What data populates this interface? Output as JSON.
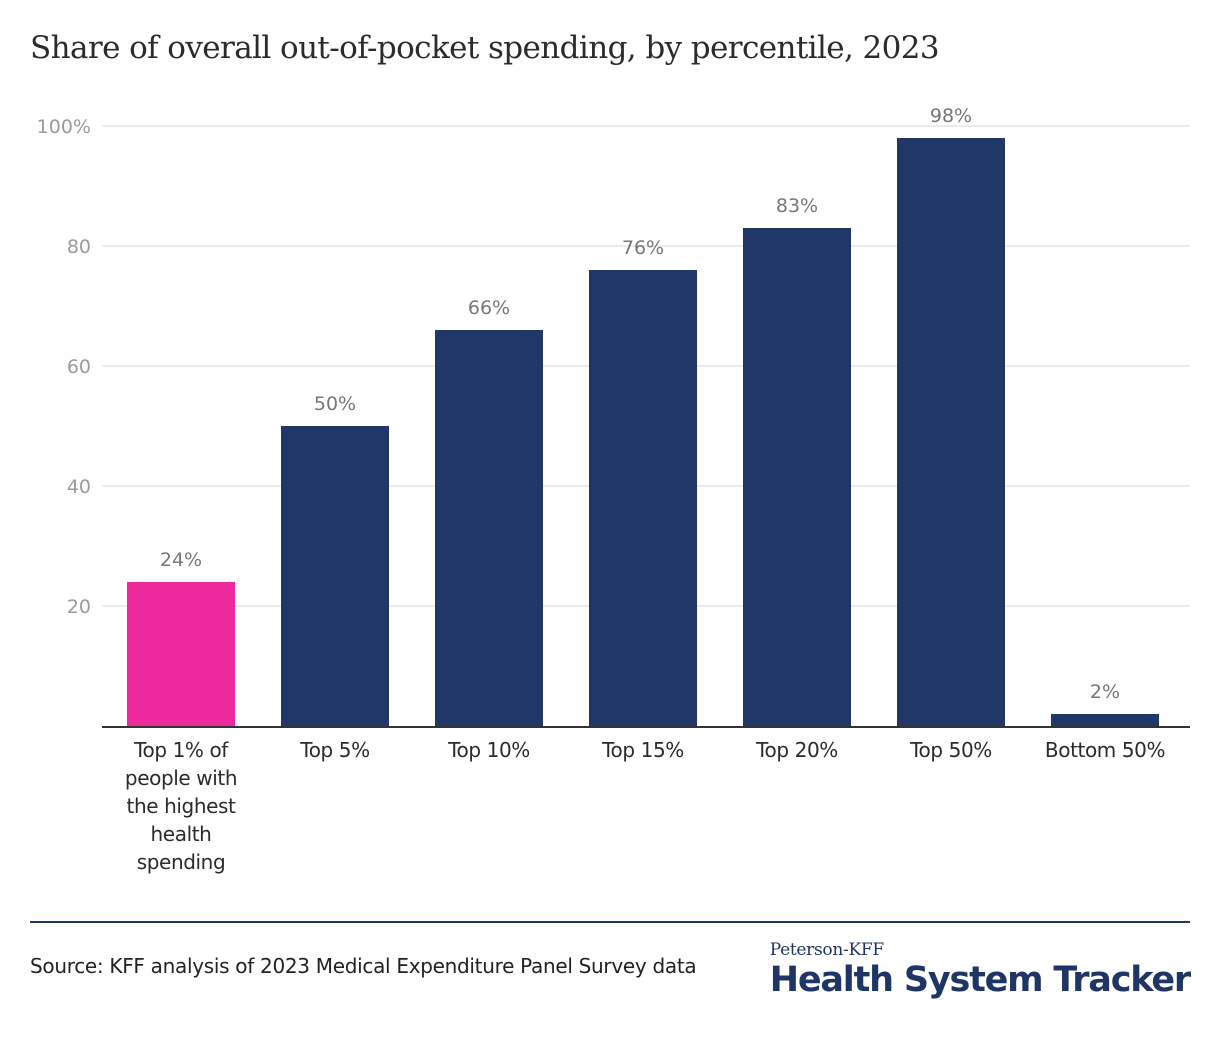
{
  "chart_data": {
    "type": "bar",
    "title": "Share of overall out-of-pocket spending, by percentile, 2023",
    "xlabel": "",
    "ylabel": "",
    "ylim": [
      0,
      100
    ],
    "yticks": [
      20,
      40,
      60,
      80,
      100
    ],
    "ytick_labels": [
      "20",
      "40",
      "60",
      "80",
      "100%"
    ],
    "grid": true,
    "categories": [
      [
        "Top 1% of",
        "people with",
        "the highest",
        "health",
        "spending"
      ],
      [
        "Top 5%"
      ],
      [
        "Top 10%"
      ],
      [
        "Top 15%"
      ],
      [
        "Top 20%"
      ],
      [
        "Top 50%"
      ],
      [
        "Bottom 50%"
      ]
    ],
    "values": [
      24,
      50,
      66,
      76,
      83,
      98,
      2
    ],
    "data_labels": [
      "24%",
      "50%",
      "66%",
      "76%",
      "83%",
      "98%",
      "2%"
    ],
    "bar_colors": [
      "#ec2a9e",
      "#213767",
      "#213767",
      "#213767",
      "#213767",
      "#213767",
      "#213767"
    ],
    "highlight_category": "Top 1% of people with the highest health spending"
  },
  "colors": {
    "highlight": "#ec2a9e",
    "primary": "#213767",
    "gridline": "#e3e3e3",
    "axis": "#333333",
    "tick_label": "#9b9b9b",
    "data_label": "#777777"
  },
  "footer": {
    "source": "Source: KFF analysis of 2023 Medical Expenditure Panel Survey data",
    "logo_top": "Peterson-KFF",
    "logo_main": "Health System Tracker"
  }
}
